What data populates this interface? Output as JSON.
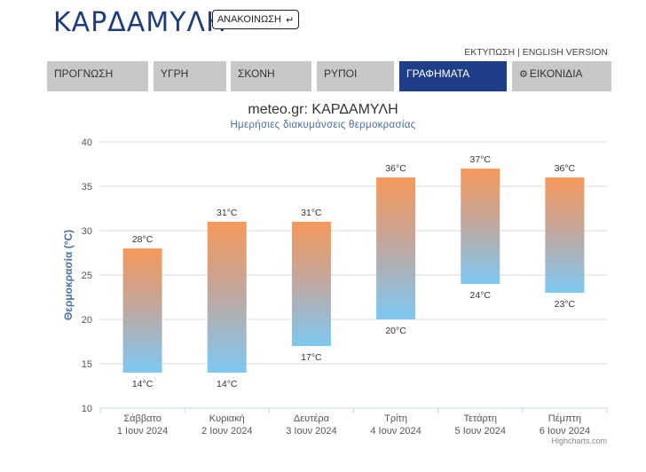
{
  "page": {
    "title": "ΚΑΡΔΑΜΥΛΗ",
    "announcement_label": "ΑΝΑΚΟΙΝΩΣΗ",
    "announcement_icon": "arrow-return-icon",
    "print_label": "ΕΚΤΥΠΩΣΗ",
    "separator": "|",
    "english_label": "ENGLISH VERSION"
  },
  "tabs": [
    {
      "label": "ΠΡΟΓΝΩΣΗ",
      "active": false
    },
    {
      "label": "ΥΓΡΗ",
      "active": false
    },
    {
      "label": "ΣΚΟΝΗ",
      "active": false
    },
    {
      "label": "ΡΥΠΟΙ",
      "active": false
    },
    {
      "label": "ΓΡΑΦΗΜΑΤΑ",
      "active": true
    },
    {
      "label": "ΕΙΚΟΝΙΔΙΑ",
      "active": false,
      "icon": "gear-icon"
    }
  ],
  "credit": "Highcharts.com",
  "chart_data": {
    "type": "bar",
    "title": "meteo.gr: ΚΑΡΔΑΜΥΛΗ",
    "subtitle": "Ημερήσιες διακυμάνσεις θερμοκρασίας",
    "ylabel": "Θερμοκρασία (°C)",
    "ylim": [
      10,
      40
    ],
    "yticks": [
      10,
      15,
      20,
      25,
      30,
      35,
      40
    ],
    "grid": true,
    "categories": [
      [
        "Σάββατο",
        "1 Ιουν 2024"
      ],
      [
        "Κυριακή",
        "2 Ιουν 2024"
      ],
      [
        "Δευτέρα",
        "3 Ιουν 2024"
      ],
      [
        "Τρίτη",
        "4 Ιουν 2024"
      ],
      [
        "Τετάρτη",
        "5 Ιουν 2024"
      ],
      [
        "Πέμπτη",
        "6 Ιουν 2024"
      ]
    ],
    "min": [
      14,
      14,
      17,
      20,
      24,
      23
    ],
    "max": [
      28,
      31,
      31,
      36,
      37,
      36
    ],
    "unit": "°C",
    "colors": {
      "low": "#7ec8f3",
      "high": "#f5985a",
      "grid": "#d8d8d8",
      "axis": "#ccd6eb"
    }
  }
}
